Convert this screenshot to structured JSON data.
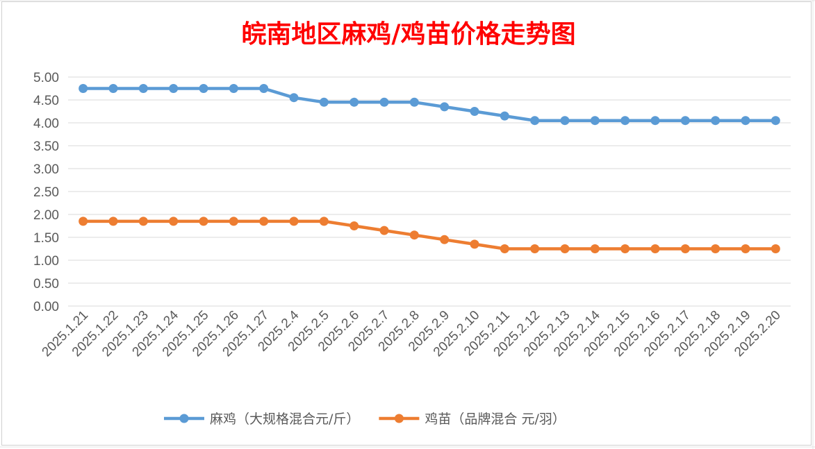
{
  "chart_data": {
    "type": "line",
    "title": "皖南地区麻鸡/鸡苗价格走势图",
    "xlabel": "",
    "ylabel": "",
    "ylim": [
      0,
      5
    ],
    "ytick_labels": [
      "0.00",
      "0.50",
      "1.00",
      "1.50",
      "2.00",
      "2.50",
      "3.00",
      "3.50",
      "4.00",
      "4.50",
      "5.00"
    ],
    "grid": true,
    "legend_position": "bottom",
    "categories": [
      "2025.1.21",
      "2025.1.22",
      "2025.1.23",
      "2025.1.24",
      "2025.1.25",
      "2025.1.26",
      "2025.1.27",
      "2025.2.4",
      "2025.2.5",
      "2025.2.6",
      "2025.2.7",
      "2025.2.8",
      "2025.2.9",
      "2025.2.10",
      "2025.2.11",
      "2025.2.12",
      "2025.2.13",
      "2025.2.14",
      "2025.2.15",
      "2025.2.16",
      "2025.2.17",
      "2025.2.18",
      "2025.2.19",
      "2025.2.20"
    ],
    "series": [
      {
        "name": "麻鸡（大规格混合元/斤）",
        "color": "#5b9bd5",
        "values": [
          4.75,
          4.75,
          4.75,
          4.75,
          4.75,
          4.75,
          4.75,
          4.55,
          4.45,
          4.45,
          4.45,
          4.45,
          4.35,
          4.25,
          4.15,
          4.05,
          4.05,
          4.05,
          4.05,
          4.05,
          4.05,
          4.05,
          4.05,
          4.05
        ]
      },
      {
        "name": "鸡苗（品牌混合 元/羽）",
        "color": "#ed7d31",
        "values": [
          1.85,
          1.85,
          1.85,
          1.85,
          1.85,
          1.85,
          1.85,
          1.85,
          1.85,
          1.75,
          1.65,
          1.55,
          1.45,
          1.35,
          1.25,
          1.25,
          1.25,
          1.25,
          1.25,
          1.25,
          1.25,
          1.25,
          1.25,
          1.25
        ]
      }
    ]
  }
}
